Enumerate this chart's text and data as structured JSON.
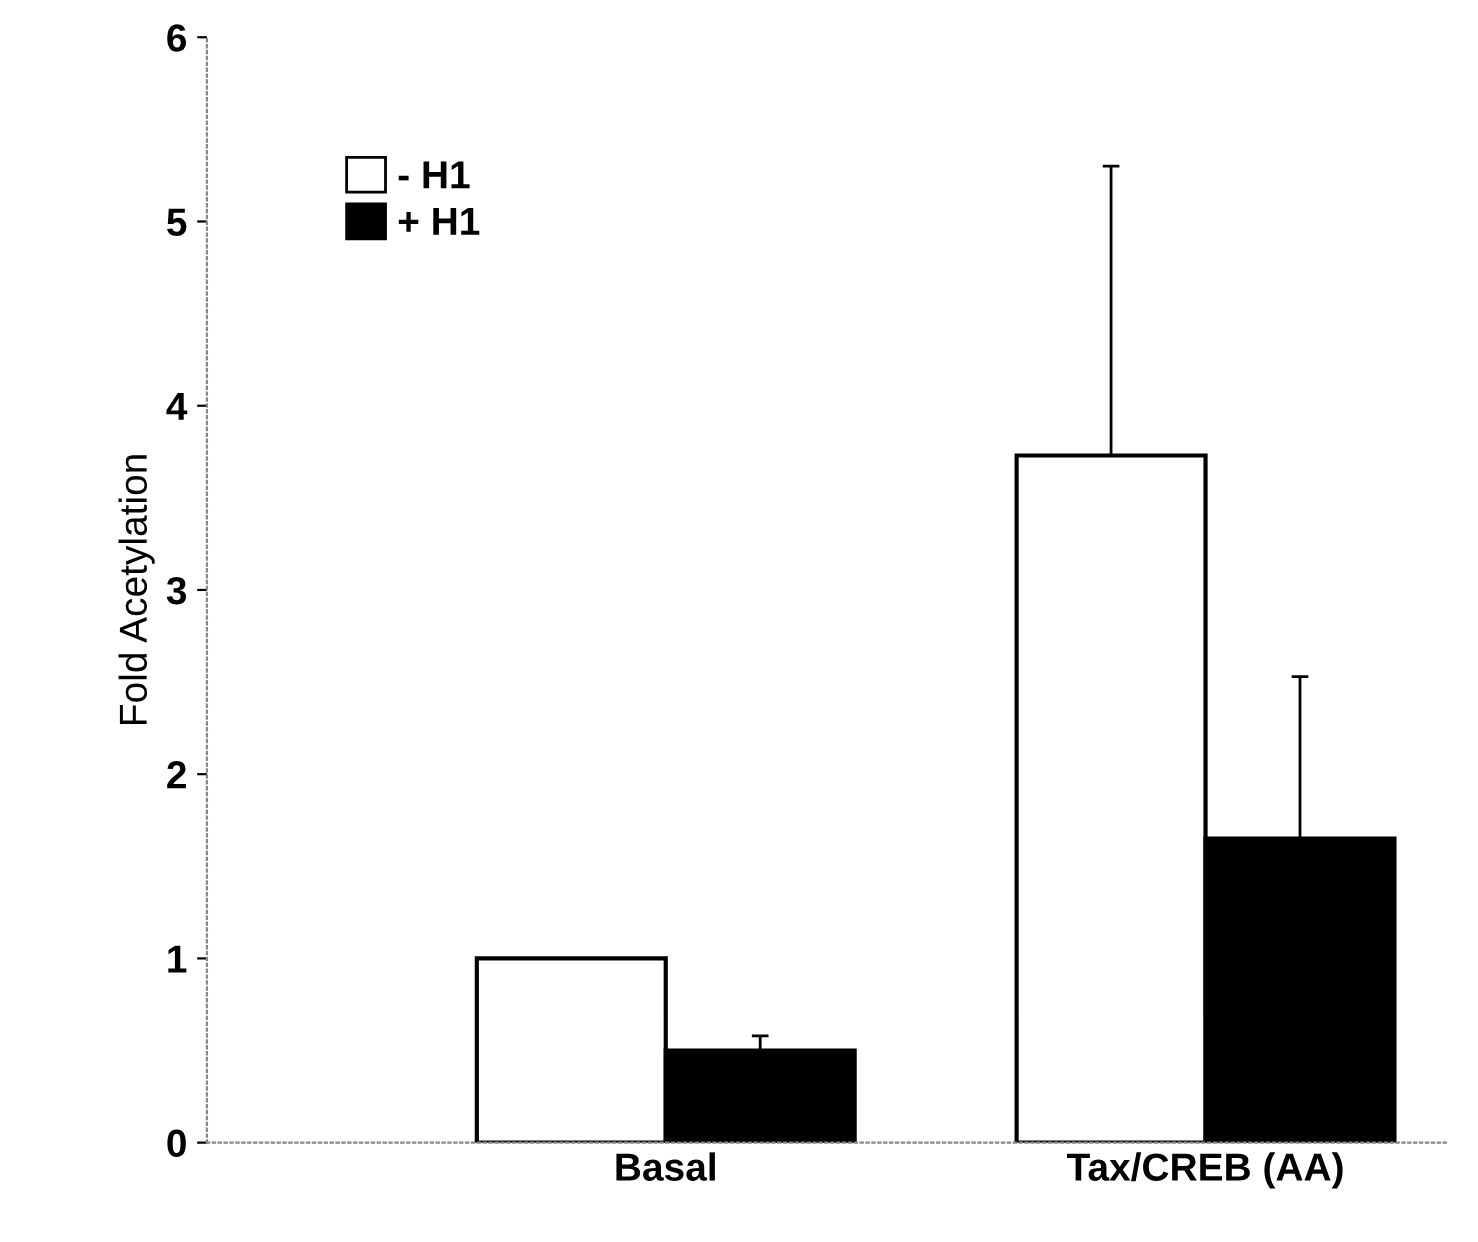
{
  "chart_data": {
    "type": "bar",
    "ylabel": "Fold Acetylation",
    "categories": [
      "Basal",
      "Tax/CREB (AA)"
    ],
    "series": [
      {
        "name": "- H1",
        "color": "#ffffff",
        "values": [
          1.0,
          3.73
        ],
        "errors": [
          null,
          [
            3.73,
            5.3
          ]
        ]
      },
      {
        "name": "+ H1",
        "color": "#000000",
        "values": [
          0.5,
          1.65
        ],
        "errors": [
          [
            0.5,
            0.58
          ],
          [
            1.65,
            2.53
          ]
        ]
      }
    ],
    "ylim": [
      0,
      6
    ],
    "yticks": [
      0,
      1,
      2,
      3,
      4,
      5,
      6
    ],
    "grid": false,
    "legend": "top left"
  }
}
